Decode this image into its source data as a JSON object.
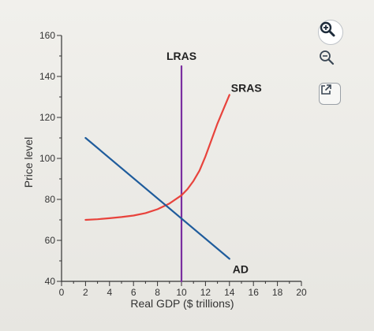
{
  "chart_data": {
    "type": "line",
    "title": "",
    "xlabel": "Real GDP ($ trillions)",
    "ylabel": "Price level",
    "xlim": [
      0,
      20
    ],
    "ylim": [
      40,
      160
    ],
    "xticks": [
      0,
      2,
      4,
      6,
      8,
      10,
      12,
      14,
      16,
      18,
      20
    ],
    "yticks": [
      40,
      60,
      80,
      100,
      120,
      140,
      160
    ],
    "grid": false,
    "series": [
      {
        "name": "LRAS",
        "color": "#7a2ea0",
        "x": [
          10,
          10
        ],
        "y": [
          40,
          145
        ]
      },
      {
        "name": "SRAS",
        "color": "#e8433c",
        "x": [
          2,
          3,
          4,
          5,
          6,
          7,
          8,
          9,
          10,
          10.5,
          11,
          11.5,
          12,
          12.5,
          13,
          13.5,
          14
        ],
        "y": [
          70,
          70.3,
          70.8,
          71.4,
          72.1,
          73.3,
          75.2,
          78,
          82,
          85,
          89,
          94,
          101,
          109,
          117,
          124,
          131
        ]
      },
      {
        "name": "AD",
        "color": "#1f5c9c",
        "x": [
          2,
          14
        ],
        "y": [
          110,
          51
        ]
      }
    ]
  },
  "toolbar": {
    "zoom_in_icon": "zoom-in-icon",
    "zoom_out_icon": "zoom-out-icon",
    "popout_icon": "external-link-icon"
  }
}
